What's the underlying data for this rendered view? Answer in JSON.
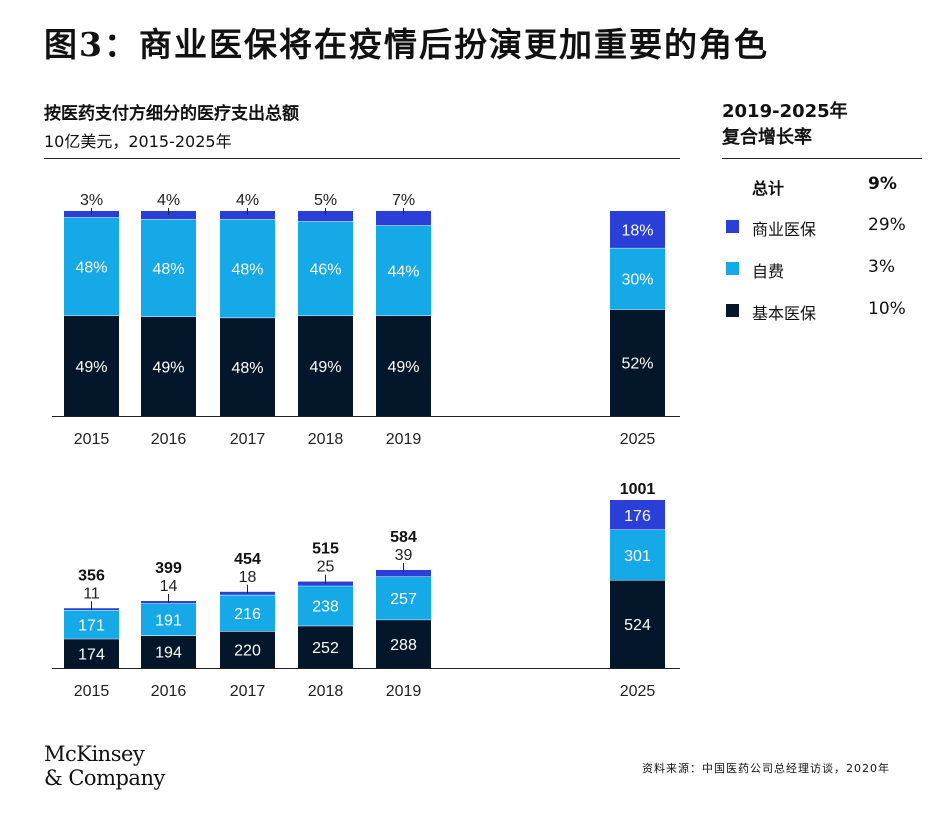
{
  "header": {
    "figure_label": "图3：",
    "title": "商业医保将在疫情后扮演更加重要的角色"
  },
  "chart_header": {
    "title": "按医药支付方细分的医疗支出总额",
    "unit": "10亿美元，2015-2025年"
  },
  "cagr": {
    "title_line1": "2019-2025年",
    "title_line2": "复合增长率",
    "rows": [
      {
        "label": "总计",
        "value": "9%",
        "color": null,
        "bold": true
      },
      {
        "label": "商业医保",
        "value": "29%",
        "color": "#2a3fd8"
      },
      {
        "label": "自费",
        "value": "3%",
        "color": "#16a9e8"
      },
      {
        "label": "基本医保",
        "value": "10%",
        "color": "#04172a"
      }
    ]
  },
  "footer": {
    "logo_line1": "McKinsey",
    "logo_line2": "& Company",
    "source": "资料来源：中国医药公司总经理访谈，2020年"
  },
  "chart_data": [
    {
      "type": "bar",
      "stacked": true,
      "percent": true,
      "categories": [
        "2015",
        "2016",
        "2017",
        "2018",
        "2019",
        "2025"
      ],
      "series": [
        {
          "name": "基本医保",
          "color": "#04172a",
          "values": [
            49,
            49,
            48,
            49,
            49,
            52
          ],
          "labels": [
            "49%",
            "49%",
            "48%",
            "49%",
            "49%",
            "52%"
          ]
        },
        {
          "name": "自费",
          "color": "#16a9e8",
          "values": [
            48,
            48,
            48,
            46,
            44,
            30
          ],
          "labels": [
            "48%",
            "48%",
            "48%",
            "46%",
            "44%",
            "30%"
          ]
        },
        {
          "name": "商业医保",
          "color": "#2a3fd8",
          "values": [
            3,
            4,
            4,
            5,
            7,
            18
          ],
          "labels": [
            "3%",
            "4%",
            "4%",
            "5%",
            "7%",
            "18%"
          ]
        }
      ],
      "ylim": [
        0,
        100
      ]
    },
    {
      "type": "bar",
      "stacked": true,
      "categories": [
        "2015",
        "2016",
        "2017",
        "2018",
        "2019",
        "2025"
      ],
      "totals": [
        356,
        399,
        454,
        515,
        584,
        1001
      ],
      "series": [
        {
          "name": "基本医保",
          "color": "#04172a",
          "values": [
            174,
            194,
            220,
            252,
            288,
            524
          ]
        },
        {
          "name": "自费",
          "color": "#16a9e8",
          "values": [
            171,
            191,
            216,
            238,
            257,
            301
          ]
        },
        {
          "name": "商业医保",
          "color": "#2a3fd8",
          "values": [
            11,
            14,
            18,
            25,
            39,
            176
          ]
        }
      ],
      "ylim": [
        0,
        1001
      ]
    }
  ]
}
